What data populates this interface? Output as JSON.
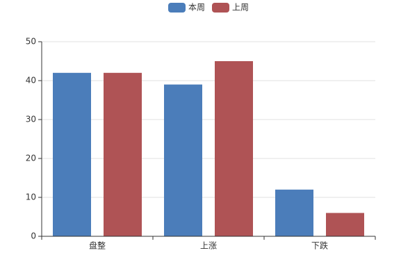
{
  "chart_data": {
    "type": "bar",
    "categories": [
      "盘整",
      "上涨",
      "下跌"
    ],
    "series": [
      {
        "name": "本周",
        "color": "#4b7dba",
        "values": [
          42,
          39,
          12
        ]
      },
      {
        "name": "上周",
        "color": "#af5355",
        "values": [
          42,
          45,
          6
        ]
      }
    ],
    "ylim": [
      0,
      50
    ],
    "yticks": [
      0,
      10,
      20,
      30,
      40,
      50
    ],
    "grid": true,
    "legend": "top"
  }
}
